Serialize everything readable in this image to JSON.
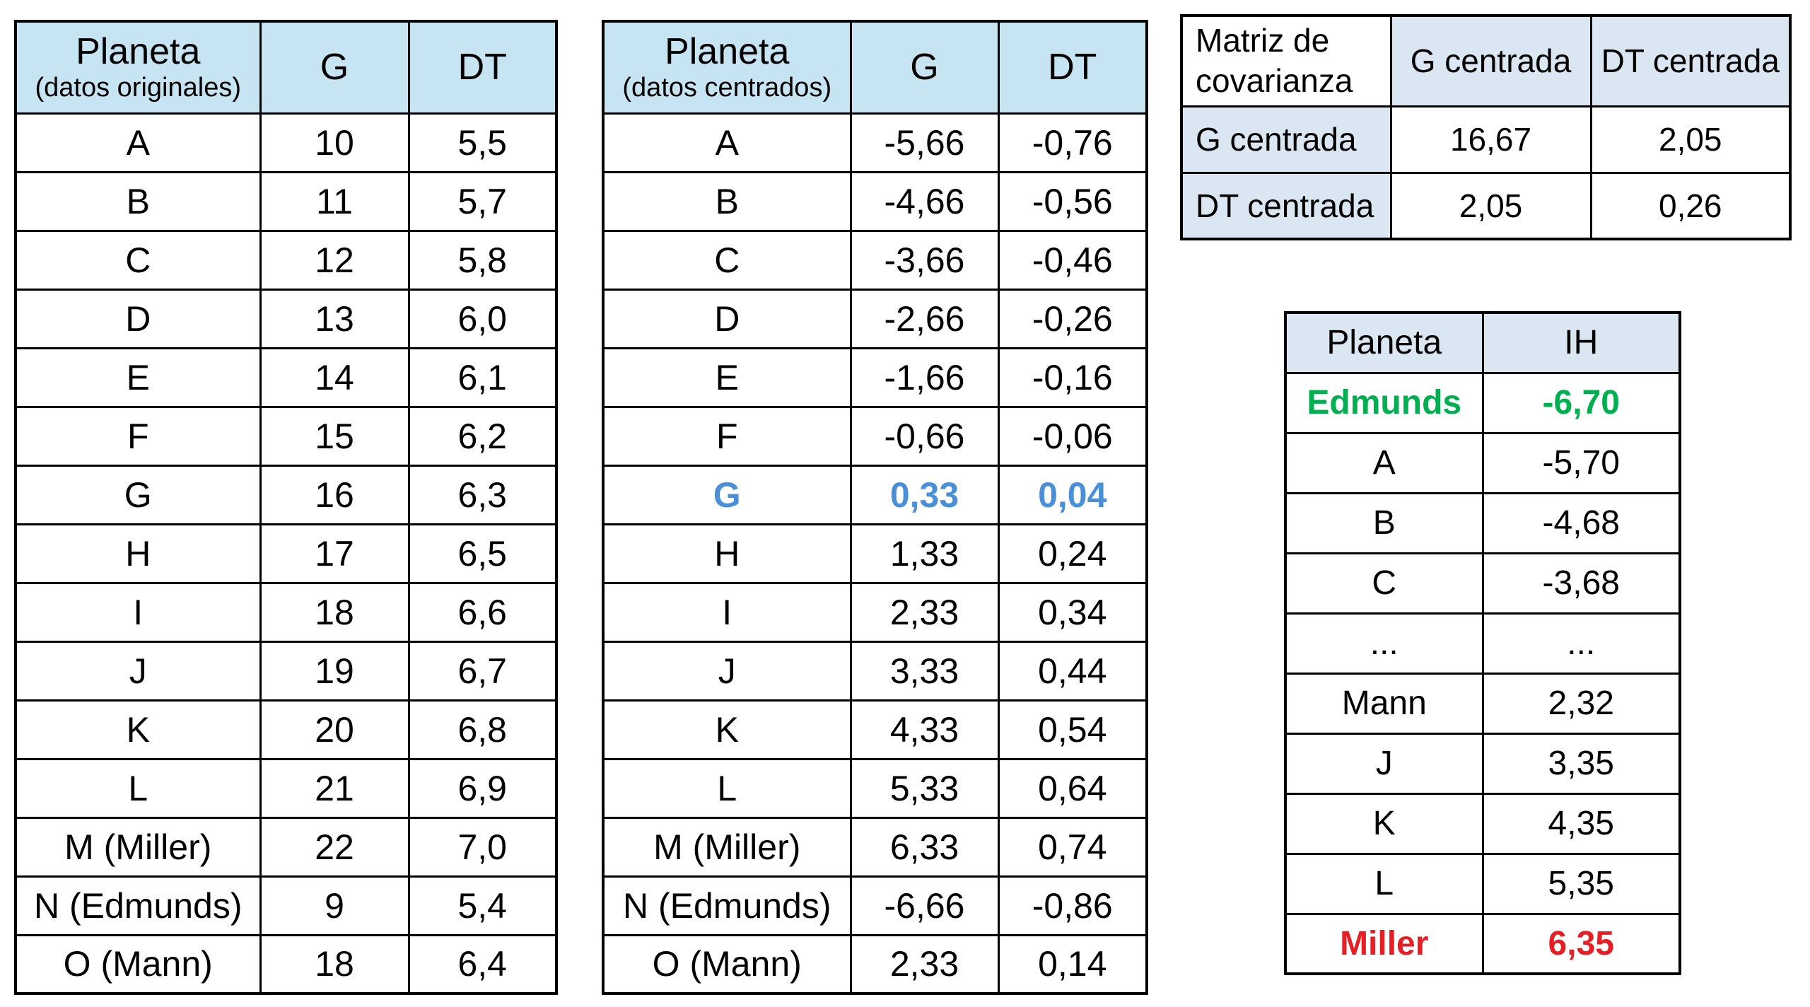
{
  "colors": {
    "header_blue": "#c7e4f3",
    "header_lavender": "#dae6f2",
    "border": "#000000",
    "highlight_blue": "#4a90d8",
    "highlight_green": "#00b050",
    "highlight_red": "#e81e25"
  },
  "tables": {
    "originales": {
      "header": {
        "title": "Planeta",
        "subtitle": "(datos originales)",
        "col_g": "G",
        "col_dt": "DT"
      },
      "rows": [
        {
          "cells": [
            "A",
            "10",
            "5,5"
          ]
        },
        {
          "cells": [
            "B",
            "11",
            "5,7"
          ]
        },
        {
          "cells": [
            "C",
            "12",
            "5,8"
          ]
        },
        {
          "cells": [
            "D",
            "13",
            "6,0"
          ]
        },
        {
          "cells": [
            "E",
            "14",
            "6,1"
          ]
        },
        {
          "cells": [
            "F",
            "15",
            "6,2"
          ]
        },
        {
          "cells": [
            "G",
            "16",
            "6,3"
          ]
        },
        {
          "cells": [
            "H",
            "17",
            "6,5"
          ]
        },
        {
          "cells": [
            "I",
            "18",
            "6,6"
          ]
        },
        {
          "cells": [
            "J",
            "19",
            "6,7"
          ]
        },
        {
          "cells": [
            "K",
            "20",
            "6,8"
          ]
        },
        {
          "cells": [
            "L",
            "21",
            "6,9"
          ]
        },
        {
          "cells": [
            "M (Miller)",
            "22",
            "7,0"
          ]
        },
        {
          "cells": [
            "N (Edmunds)",
            "9",
            "5,4"
          ]
        },
        {
          "cells": [
            "O (Mann)",
            "18",
            "6,4"
          ]
        }
      ]
    },
    "centrados": {
      "header": {
        "title": "Planeta",
        "subtitle": "(datos centrados)",
        "col_g": "G",
        "col_dt": "DT"
      },
      "rows": [
        {
          "cells": [
            "A",
            "-5,66",
            "-0,76"
          ]
        },
        {
          "cells": [
            "B",
            "-4,66",
            "-0,56"
          ]
        },
        {
          "cells": [
            "C",
            "-3,66",
            "-0,46"
          ]
        },
        {
          "cells": [
            "D",
            "-2,66",
            "-0,26"
          ]
        },
        {
          "cells": [
            "E",
            "-1,66",
            "-0,16"
          ]
        },
        {
          "cells": [
            "F",
            "-0,66",
            "-0,06"
          ]
        },
        {
          "cells": [
            "G",
            "0,33",
            "0,04"
          ],
          "style": "blue"
        },
        {
          "cells": [
            "H",
            "1,33",
            "0,24"
          ]
        },
        {
          "cells": [
            "I",
            "2,33",
            "0,34"
          ]
        },
        {
          "cells": [
            "J",
            "3,33",
            "0,44"
          ]
        },
        {
          "cells": [
            "K",
            "4,33",
            "0,54"
          ]
        },
        {
          "cells": [
            "L",
            "5,33",
            "0,64"
          ]
        },
        {
          "cells": [
            "M (Miller)",
            "6,33",
            "0,74"
          ]
        },
        {
          "cells": [
            "N (Edmunds)",
            "-6,66",
            "-0,86"
          ]
        },
        {
          "cells": [
            "O (Mann)",
            "2,33",
            "0,14"
          ]
        }
      ]
    },
    "covarianza": {
      "header": {
        "corner_line1": "Matriz de",
        "corner_line2": "covarianza",
        "col_g": "G centrada",
        "col_dt": "DT centrada"
      },
      "rows": [
        {
          "cells": [
            "G centrada",
            "16,67",
            "2,05"
          ]
        },
        {
          "cells": [
            "DT centrada",
            "2,05",
            "0,26"
          ]
        }
      ]
    },
    "ih": {
      "header": {
        "col_planeta": "Planeta",
        "col_ih": "IH"
      },
      "rows": [
        {
          "cells": [
            "Edmunds",
            "-6,70"
          ],
          "style": "green"
        },
        {
          "cells": [
            "A",
            "-5,70"
          ]
        },
        {
          "cells": [
            "B",
            "-4,68"
          ]
        },
        {
          "cells": [
            "C",
            "-3,68"
          ]
        },
        {
          "cells": [
            "...",
            "..."
          ]
        },
        {
          "cells": [
            "Mann",
            "2,32"
          ]
        },
        {
          "cells": [
            "J",
            "3,35"
          ]
        },
        {
          "cells": [
            "K",
            "4,35"
          ]
        },
        {
          "cells": [
            "L",
            "5,35"
          ]
        },
        {
          "cells": [
            "Miller",
            "6,35"
          ],
          "style": "red"
        }
      ]
    }
  }
}
